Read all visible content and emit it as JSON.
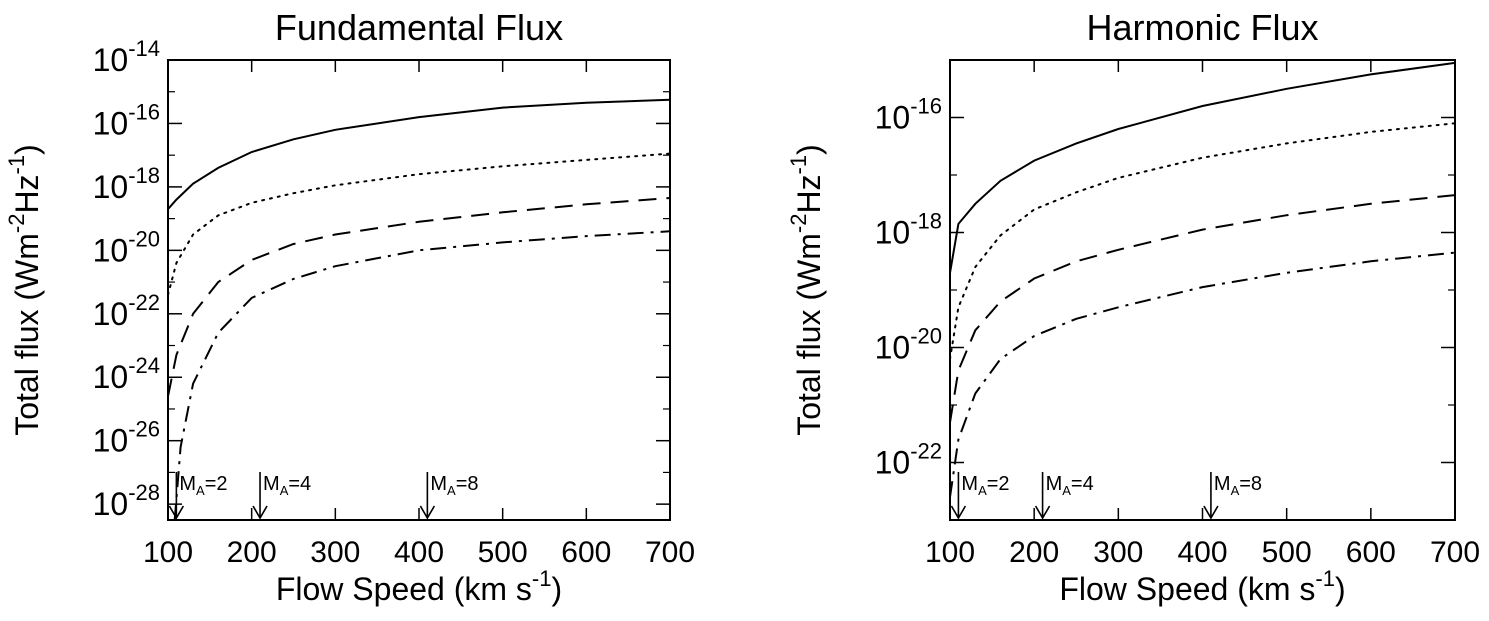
{
  "chart_data": [
    {
      "type": "line",
      "title": "Fundamental Flux",
      "xlabel": "Flow Speed (km s",
      "xlabel_sup": "-1",
      "xlabel_end": ")",
      "ylabel": "Total flux (Wm",
      "ylabel_sup1": "-2",
      "ylabel_mid": "Hz",
      "ylabel_sup2": "-1",
      "ylabel_end": ")",
      "xlim": [
        100,
        700
      ],
      "ylim_log10": [
        -28.5,
        -14
      ],
      "x_ticks": [
        "100",
        "200",
        "300",
        "400",
        "500",
        "600",
        "700"
      ],
      "y_ticks": [
        {
          "base": "10",
          "exp": "-14",
          "log": -14
        },
        {
          "base": "10",
          "exp": "-16",
          "log": -16
        },
        {
          "base": "10",
          "exp": "-18",
          "log": -18
        },
        {
          "base": "10",
          "exp": "-20",
          "log": -20
        },
        {
          "base": "10",
          "exp": "-22",
          "log": -22
        },
        {
          "base": "10",
          "exp": "-24",
          "log": -24
        },
        {
          "base": "10",
          "exp": "-26",
          "log": -26
        },
        {
          "base": "10",
          "exp": "-28",
          "log": -28
        }
      ],
      "series": [
        {
          "style": "solid",
          "x": [
            100,
            110,
            130,
            160,
            200,
            250,
            300,
            400,
            500,
            600,
            700
          ],
          "log10_y": [
            -18.7,
            -18.4,
            -17.9,
            -17.4,
            -16.9,
            -16.5,
            -16.2,
            -15.8,
            -15.5,
            -15.35,
            -15.25
          ]
        },
        {
          "style": "dotted",
          "x": [
            100,
            110,
            130,
            160,
            200,
            250,
            300,
            400,
            500,
            600,
            700
          ],
          "log10_y": [
            -21.4,
            -20.4,
            -19.5,
            -18.9,
            -18.5,
            -18.2,
            -17.95,
            -17.6,
            -17.35,
            -17.15,
            -16.95
          ]
        },
        {
          "style": "dashed",
          "x": [
            100,
            110,
            130,
            160,
            200,
            250,
            300,
            400,
            500,
            600,
            700
          ],
          "log10_y": [
            -24.6,
            -23.3,
            -22.0,
            -21.0,
            -20.3,
            -19.8,
            -19.5,
            -19.1,
            -18.8,
            -18.55,
            -18.35
          ]
        },
        {
          "style": "dashdot",
          "x": [
            108,
            115,
            130,
            160,
            200,
            250,
            300,
            400,
            500,
            600,
            700
          ],
          "log10_y": [
            -28.5,
            -26.2,
            -24.2,
            -22.6,
            -21.5,
            -20.9,
            -20.5,
            -20.0,
            -19.75,
            -19.55,
            -19.4
          ]
        }
      ],
      "markers": [
        {
          "label": "M",
          "sub": "A",
          "value": "=2",
          "x": 110
        },
        {
          "label": "M",
          "sub": "A",
          "value": "=4",
          "x": 210
        },
        {
          "label": "M",
          "sub": "A",
          "value": "=8",
          "x": 410
        }
      ]
    },
    {
      "type": "line",
      "title": "Harmonic Flux",
      "xlabel": "Flow Speed (km s",
      "xlabel_sup": "-1",
      "xlabel_end": ")",
      "ylabel": "Total flux (Wm",
      "ylabel_sup1": "-2",
      "ylabel_mid": "Hz",
      "ylabel_sup2": "-1",
      "ylabel_end": ")",
      "xlim": [
        100,
        700
      ],
      "ylim_log10": [
        -23,
        -15
      ],
      "x_ticks": [
        "100",
        "200",
        "300",
        "400",
        "500",
        "600",
        "700"
      ],
      "y_ticks": [
        {
          "base": "10",
          "exp": "-16",
          "log": -16
        },
        {
          "base": "10",
          "exp": "-18",
          "log": -18
        },
        {
          "base": "10",
          "exp": "-20",
          "log": -20
        },
        {
          "base": "10",
          "exp": "-22",
          "log": -22
        }
      ],
      "series": [
        {
          "style": "solid",
          "x": [
            100,
            110,
            130,
            160,
            200,
            250,
            300,
            400,
            500,
            600,
            700
          ],
          "log10_y": [
            -18.7,
            -17.85,
            -17.5,
            -17.1,
            -16.75,
            -16.45,
            -16.2,
            -15.8,
            -15.5,
            -15.25,
            -15.05
          ]
        },
        {
          "style": "dotted",
          "x": [
            100,
            110,
            130,
            160,
            200,
            250,
            300,
            400,
            500,
            600,
            700
          ],
          "log10_y": [
            -20.2,
            -19.3,
            -18.6,
            -18.05,
            -17.6,
            -17.3,
            -17.05,
            -16.7,
            -16.45,
            -16.25,
            -16.1
          ]
        },
        {
          "style": "dashed",
          "x": [
            100,
            110,
            130,
            160,
            200,
            250,
            300,
            400,
            500,
            600,
            700
          ],
          "log10_y": [
            -21.3,
            -20.4,
            -19.7,
            -19.2,
            -18.8,
            -18.5,
            -18.3,
            -17.95,
            -17.7,
            -17.5,
            -17.35
          ]
        },
        {
          "style": "dashdot",
          "x": [
            100,
            110,
            130,
            160,
            200,
            250,
            300,
            400,
            500,
            600,
            700
          ],
          "log10_y": [
            -22.6,
            -21.6,
            -20.8,
            -20.2,
            -19.8,
            -19.5,
            -19.3,
            -18.95,
            -18.7,
            -18.5,
            -18.35
          ]
        }
      ],
      "markers": [
        {
          "label": "M",
          "sub": "A",
          "value": "=2",
          "x": 110
        },
        {
          "label": "M",
          "sub": "A",
          "value": "=4",
          "x": 210
        },
        {
          "label": "M",
          "sub": "A",
          "value": "=8",
          "x": 410
        }
      ]
    }
  ]
}
